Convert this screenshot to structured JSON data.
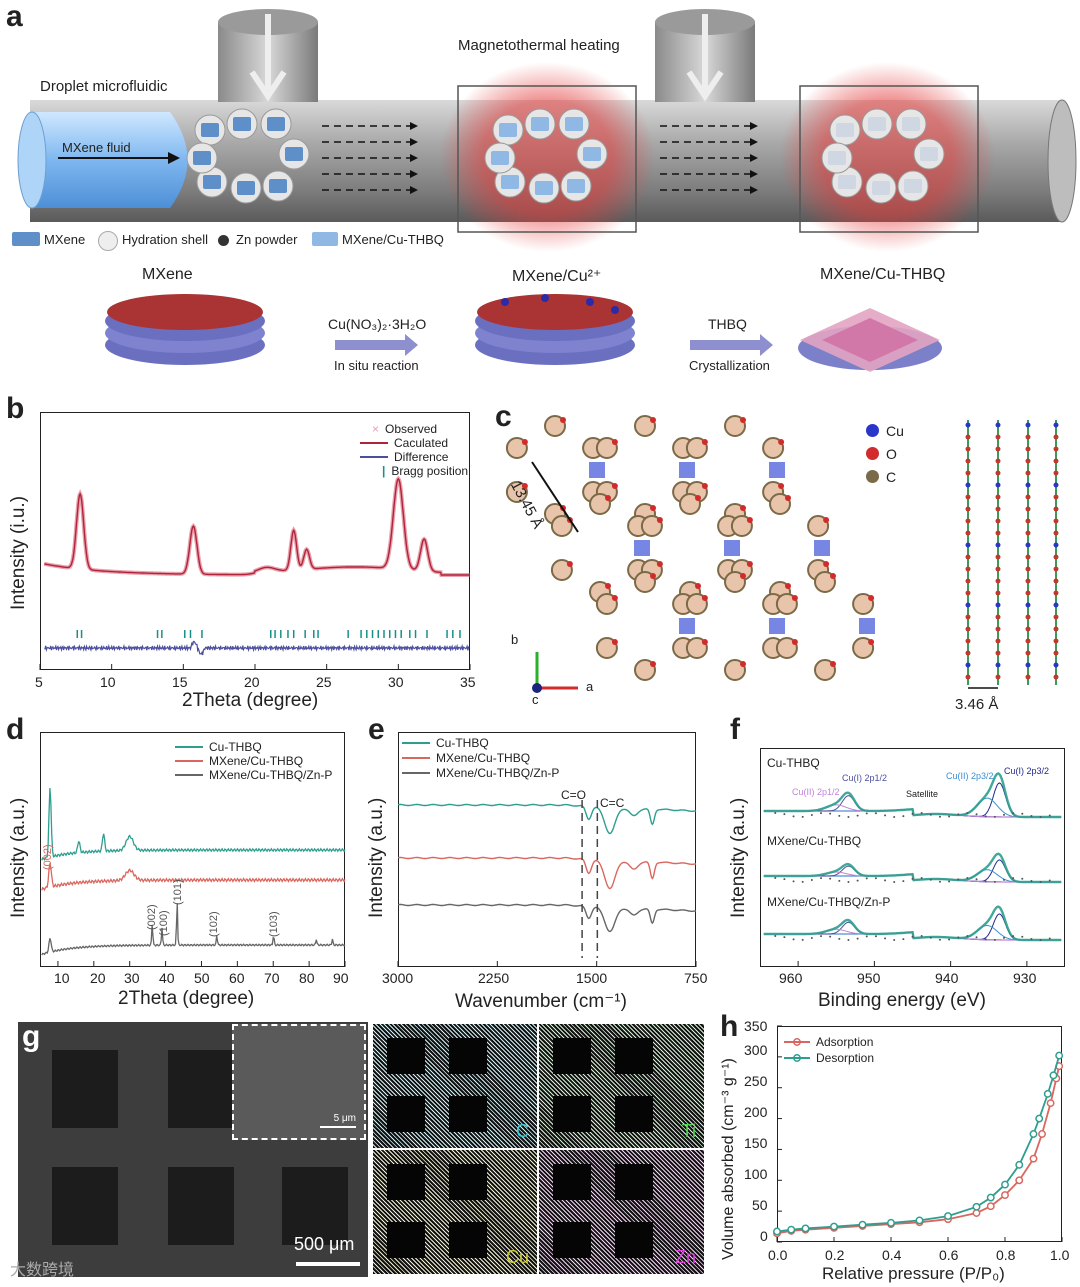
{
  "panels": {
    "a": {
      "label": "a",
      "droplet_microfluidic": "Droplet microfluidic",
      "magnetothermal_heating": "Magnetothermal heating",
      "mxene_fluid": "MXene fluid",
      "legend": [
        "MXene",
        "Hydration shell",
        "Zn powder",
        "MXene/Cu-THBQ"
      ],
      "stages": [
        "MXene",
        "MXene/Cu²⁺",
        "MXene/Cu-THBQ"
      ],
      "step1_reagent": "Cu(NO₃)₂·3H₂O",
      "step1_label": "In situ reaction",
      "step2_reagent": "THBQ",
      "step2_label": "Crystallization"
    },
    "b": {
      "label": "b",
      "xlabel": "2Theta (degree)",
      "ylabel": "Intensity (i.u.)",
      "xticks": [
        "5",
        "10",
        "15",
        "20",
        "25",
        "30",
        "35"
      ],
      "legend": [
        "Observed",
        "Caculated",
        "Difference",
        "Bragg position"
      ]
    },
    "c": {
      "label": "c",
      "pore_label": "13.45 Å",
      "spacing_label": "3.46 Å",
      "legend": [
        "Cu",
        "O",
        "C"
      ],
      "axes": [
        "b",
        "a",
        "c"
      ]
    },
    "d": {
      "label": "d",
      "xlabel": "2Theta (degree)",
      "ylabel": "Intensity (a.u.)",
      "xticks": [
        "10",
        "20",
        "30",
        "40",
        "50",
        "60",
        "70",
        "80",
        "90"
      ],
      "legend": [
        "Cu-THBQ",
        "MXene/Cu-THBQ",
        "MXene/Cu-THBQ/Zn-P"
      ],
      "peaks": [
        "(002)",
        "(002)",
        "(100)",
        "(101)",
        "(102)",
        "(103)"
      ]
    },
    "e": {
      "label": "e",
      "xlabel": "Wavenumber (cm⁻¹)",
      "ylabel": "Intensity (a.u.)",
      "xticks": [
        "3000",
        "2250",
        "1500",
        "750"
      ],
      "legend": [
        "Cu-THBQ",
        "MXene/Cu-THBQ",
        "MXene/Cu-THBQ/Zn-P"
      ],
      "bands": [
        "C=O",
        "C=C"
      ]
    },
    "f": {
      "label": "f",
      "xlabel": "Binding energy (eV)",
      "ylabel": "Intensity (a.u.)",
      "xticks": [
        "960",
        "950",
        "940",
        "930"
      ],
      "samples": [
        "Cu-THBQ",
        "MXene/Cu-THBQ",
        "MXene/Cu-THBQ/Zn-P"
      ],
      "peak_labels": [
        "Cu(II) 2p1/2",
        "Cu(I) 2p1/2",
        "Satellite",
        "Cu(II) 2p3/2",
        "Cu(I) 2p3/2"
      ]
    },
    "g": {
      "label": "g",
      "scalebar_main": "500 μm",
      "scalebar_inset": "5 μm",
      "maps": [
        "C",
        "Ti",
        "Cu",
        "Zn"
      ],
      "watermark": "大数跨境"
    },
    "h": {
      "label": "h",
      "xlabel": "Relative pressure (P/P₀)",
      "ylabel": "Volume absorbed (cm⁻³ g⁻¹)",
      "xticks": [
        "0.0",
        "0.2",
        "0.4",
        "0.6",
        "0.8",
        "1.0"
      ],
      "yticks": [
        "0",
        "50",
        "100",
        "150",
        "200",
        "250",
        "300",
        "350"
      ],
      "legend": [
        "Adsorption",
        "Desorption"
      ]
    }
  },
  "colors": {
    "teal": "#2e9e8f",
    "red": "#d9675f",
    "gray": "#666666",
    "navy": "#4b4f9e",
    "crimson": "#b0243a",
    "pink": "#e8a1ad"
  },
  "chart_data": [
    {
      "type": "line",
      "title": "",
      "xlabel": "Relative pressure (P/P₀)",
      "ylabel": "Volume absorbed (cm⁻³ g⁻¹)",
      "xlim": [
        0.0,
        1.0
      ],
      "ylim": [
        0,
        350
      ],
      "series": [
        {
          "name": "Adsorption",
          "x": [
            0.0,
            0.05,
            0.1,
            0.2,
            0.3,
            0.4,
            0.5,
            0.6,
            0.7,
            0.75,
            0.8,
            0.85,
            0.9,
            0.93,
            0.96,
            0.98,
            0.99
          ],
          "y": [
            14,
            18,
            20,
            23,
            26,
            29,
            32,
            37,
            47,
            58,
            76,
            100,
            135,
            175,
            225,
            265,
            285
          ]
        },
        {
          "name": "Desorption",
          "x": [
            0.99,
            0.97,
            0.95,
            0.92,
            0.9,
            0.85,
            0.8,
            0.75,
            0.7,
            0.6,
            0.5,
            0.4,
            0.3,
            0.2,
            0.1,
            0.05,
            0.0
          ],
          "y": [
            302,
            270,
            240,
            200,
            175,
            125,
            93,
            72,
            57,
            42,
            35,
            31,
            28,
            25,
            22,
            20,
            17
          ]
        }
      ]
    }
  ]
}
